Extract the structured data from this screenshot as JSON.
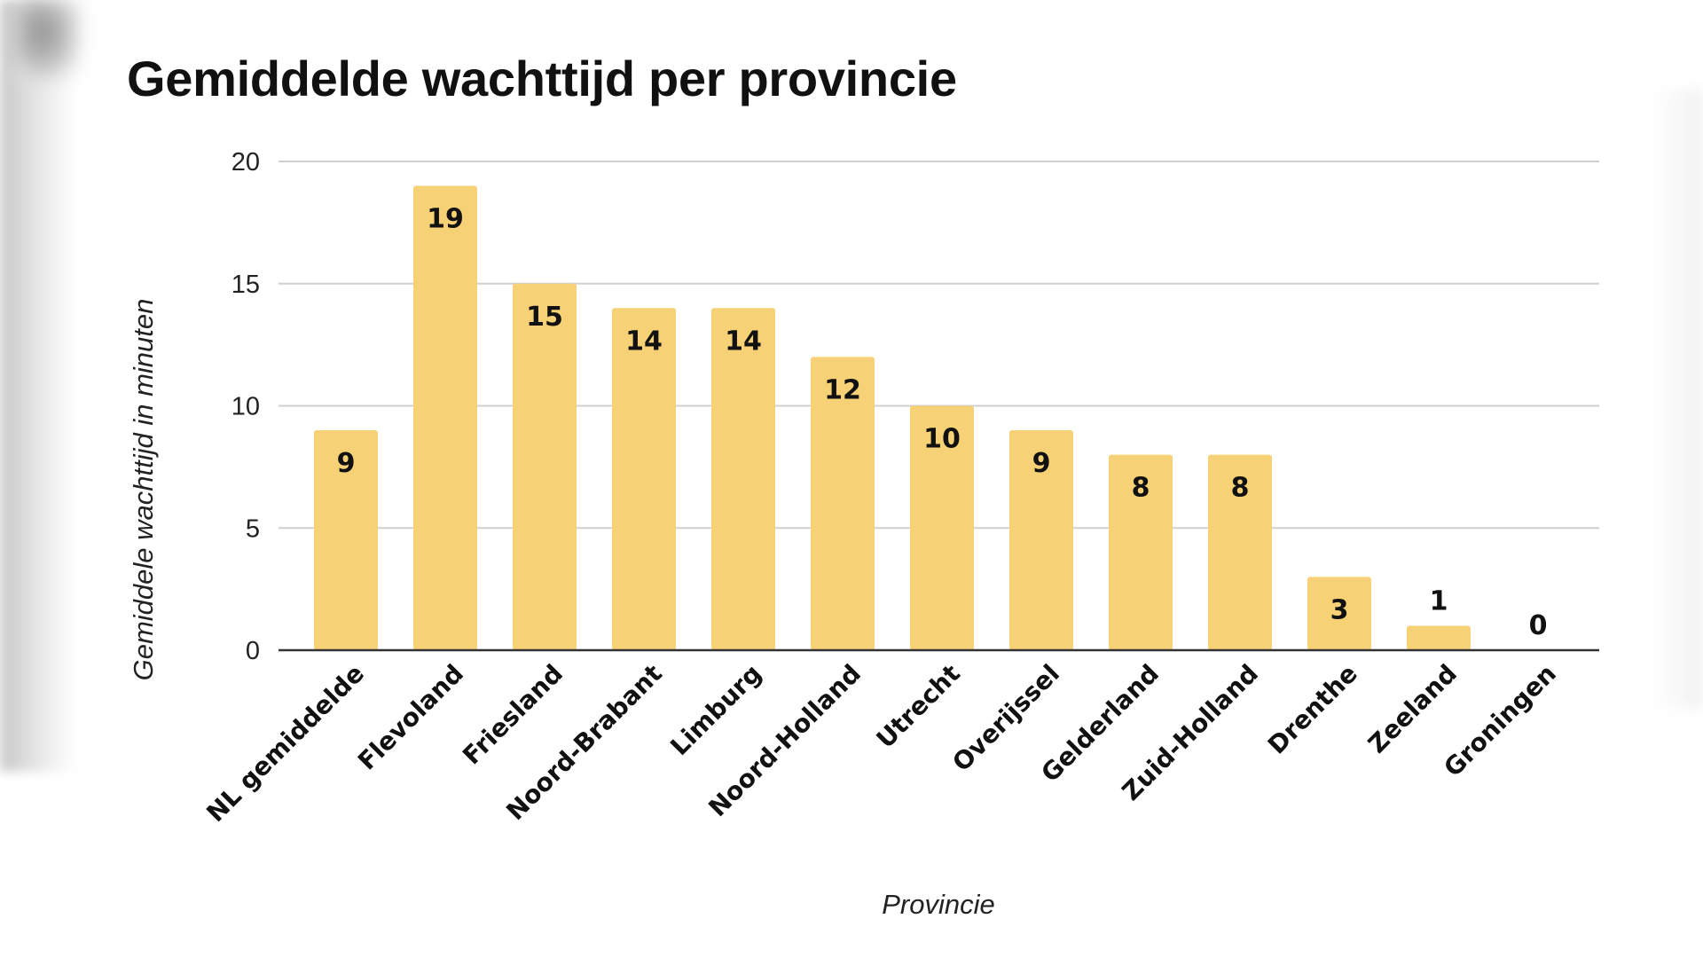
{
  "chart_data": {
    "type": "bar",
    "title": "Gemiddelde wachttijd per provincie",
    "xlabel": "Provincie",
    "ylabel": "Gemiddele wachttijd in minuten",
    "ylim": [
      0,
      20
    ],
    "yticks": [
      "0",
      "5",
      "10",
      "15",
      "20"
    ],
    "grid": true,
    "bar_color": "#f7d175",
    "categories": [
      "NL gemiddelde",
      "Flevoland",
      "Friesland",
      "Noord-Brabant",
      "Limburg",
      "Noord-Holland",
      "Utrecht",
      "Overijssel",
      "Gelderland",
      "Zuid-Holland",
      "Drenthe",
      "Zeeland",
      "Groningen"
    ],
    "values": [
      9,
      19,
      15,
      14,
      14,
      12,
      10,
      9,
      8,
      8,
      3,
      1,
      0
    ],
    "data_labels": [
      "9",
      "19",
      "15",
      "14",
      "14",
      "12",
      "10",
      "9",
      "8",
      "8",
      "3",
      "1",
      "0"
    ]
  }
}
